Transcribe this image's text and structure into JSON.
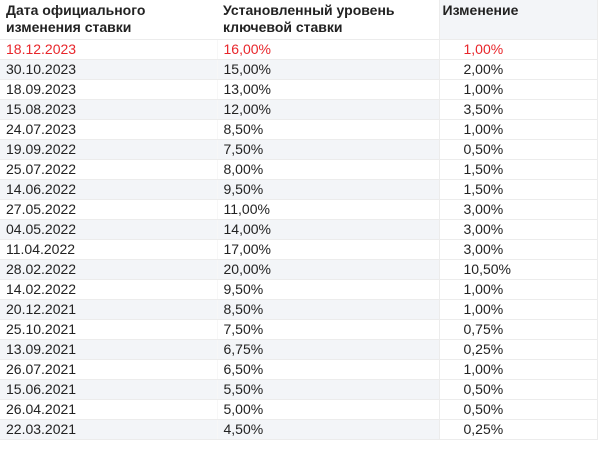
{
  "table": {
    "headers": [
      "Дата официального изменения ставки",
      "Установленный уровень ключевой ставки",
      "Изменение"
    ],
    "highlight_color": "#e8262b",
    "rows": [
      {
        "date": "18.12.2023",
        "rate": "16,00%",
        "change": "1,00%"
      },
      {
        "date": "30.10.2023",
        "rate": "15,00%",
        "change": "2,00%"
      },
      {
        "date": "18.09.2023",
        "rate": "13,00%",
        "change": "1,00%"
      },
      {
        "date": "15.08.2023",
        "rate": "12,00%",
        "change": "3,50%"
      },
      {
        "date": "24.07.2023",
        "rate": "8,50%",
        "change": "1,00%"
      },
      {
        "date": "19.09.2022",
        "rate": "7,50%",
        "change": "0,50%"
      },
      {
        "date": "25.07.2022",
        "rate": "8,00%",
        "change": "1,50%"
      },
      {
        "date": "14.06.2022",
        "rate": "9,50%",
        "change": "1,50%"
      },
      {
        "date": "27.05.2022",
        "rate": "11,00%",
        "change": "3,00%"
      },
      {
        "date": "04.05.2022",
        "rate": "14,00%",
        "change": "3,00%"
      },
      {
        "date": "11.04.2022",
        "rate": "17,00%",
        "change": "3,00%"
      },
      {
        "date": "28.02.2022",
        "rate": "20,00%",
        "change": "10,50%"
      },
      {
        "date": "14.02.2022",
        "rate": "9,50%",
        "change": "1,00%"
      },
      {
        "date": "20.12.2021",
        "rate": "8,50%",
        "change": "1,00%"
      },
      {
        "date": "25.10.2021",
        "rate": "7,50%",
        "change": "0,75%"
      },
      {
        "date": "13.09.2021",
        "rate": "6,75%",
        "change": "0,25%"
      },
      {
        "date": "26.07.2021",
        "rate": "6,50%",
        "change": "1,00%"
      },
      {
        "date": "15.06.2021",
        "rate": "5,50%",
        "change": "0,50%"
      },
      {
        "date": "26.04.2021",
        "rate": "5,00%",
        "change": "0,50%"
      },
      {
        "date": "22.03.2021",
        "rate": "4,50%",
        "change": "0,25%"
      }
    ]
  }
}
